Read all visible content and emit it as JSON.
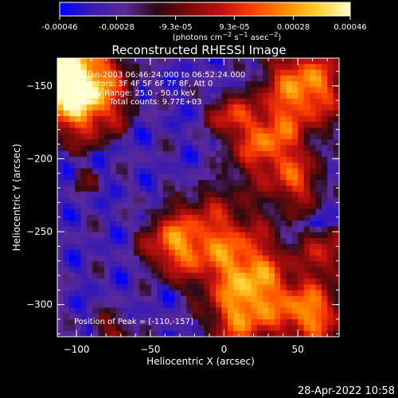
{
  "colorbar": {
    "ticks": [
      "-0.00046",
      "-0.00028",
      "-9.3e-05",
      "9.3e-05",
      "0.00028",
      "0.00046"
    ],
    "tick_values": [
      -0.00046,
      -0.00028,
      -9.3e-05,
      9.3e-05,
      0.00028,
      0.00046
    ],
    "range": [
      -0.00046,
      0.00046
    ],
    "units_html": "(photons cm<tspan baseline-shift=\"super\" font-size=\"8\">−2</tspan> s<tspan baseline-shift=\"super\" font-size=\"8\">−1</tspan> asec<tspan baseline-shift=\"super\" font-size=\"8\">−2</tspan>)",
    "units": "(photons cm-2 s-1 asec-2)",
    "colormap": [
      "#0000ff",
      "#3a1bb0",
      "#5a2a9a",
      "#2a0a14",
      "#7a0a0a",
      "#c01010",
      "#ff4000",
      "#ff8c00",
      "#ffd030",
      "#ffffcc"
    ]
  },
  "chart_data": {
    "type": "heatmap",
    "title": "Reconstructed RHESSI Image",
    "xlabel": "Heliocentric X (arcsec)",
    "ylabel": "Heliocentric Y (arcsec)",
    "xlim": [
      -113,
      78
    ],
    "ylim": [
      -322,
      -131
    ],
    "x_ticks": [
      -100,
      -50,
      0,
      50
    ],
    "y_ticks": [
      -150,
      -200,
      -250,
      -300
    ],
    "x_tick_labels": [
      "−100",
      "−50",
      "0",
      "50"
    ],
    "y_tick_labels": [
      "−150",
      "−200",
      "−250",
      "−300"
    ],
    "annotations": [
      "27-Jan-2003 06:46:24.000 to 06:52:24.000",
      "Detectors: 3F 4F 5F 6F 7F 8F, Att 0",
      "Energy Range: 25.0 - 50.0 keV",
      "Clean     Total counts: 9.77E+03"
    ],
    "peak_label": "Position of Peak = [-110,-157]",
    "peak": [
      -110,
      -157
    ]
  },
  "footer": {
    "timestamp": "28-Apr-2022 10:58"
  }
}
